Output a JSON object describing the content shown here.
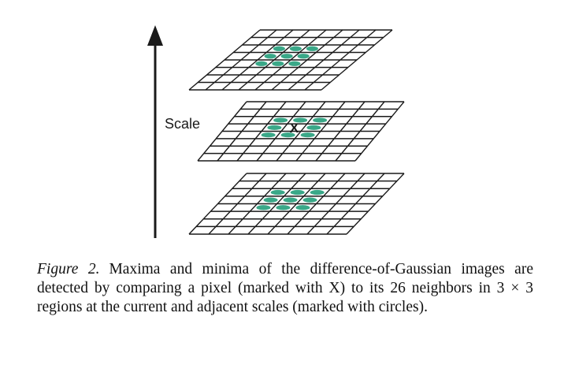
{
  "figure": {
    "axis_label": "Scale",
    "center_marker": "X",
    "circle_color": "#3aa888",
    "line_color": "#1a1a1a",
    "layers": [
      {
        "name": "upper-scale",
        "grid_size": 8,
        "has_marker": false,
        "circle_count": 9
      },
      {
        "name": "current-scale",
        "grid_size": 8,
        "has_marker": true,
        "circle_count": 8
      },
      {
        "name": "lower-scale",
        "grid_size": 8,
        "has_marker": false,
        "circle_count": 9
      }
    ]
  },
  "caption": {
    "label": "Figure 2.",
    "text": "Maxima and minima of the difference-of-Gaussian images are detected by comparing a pixel (marked with X) to its 26 neighbors in 3 × 3 regions at the current and adjacent scales (marked with circles)."
  }
}
